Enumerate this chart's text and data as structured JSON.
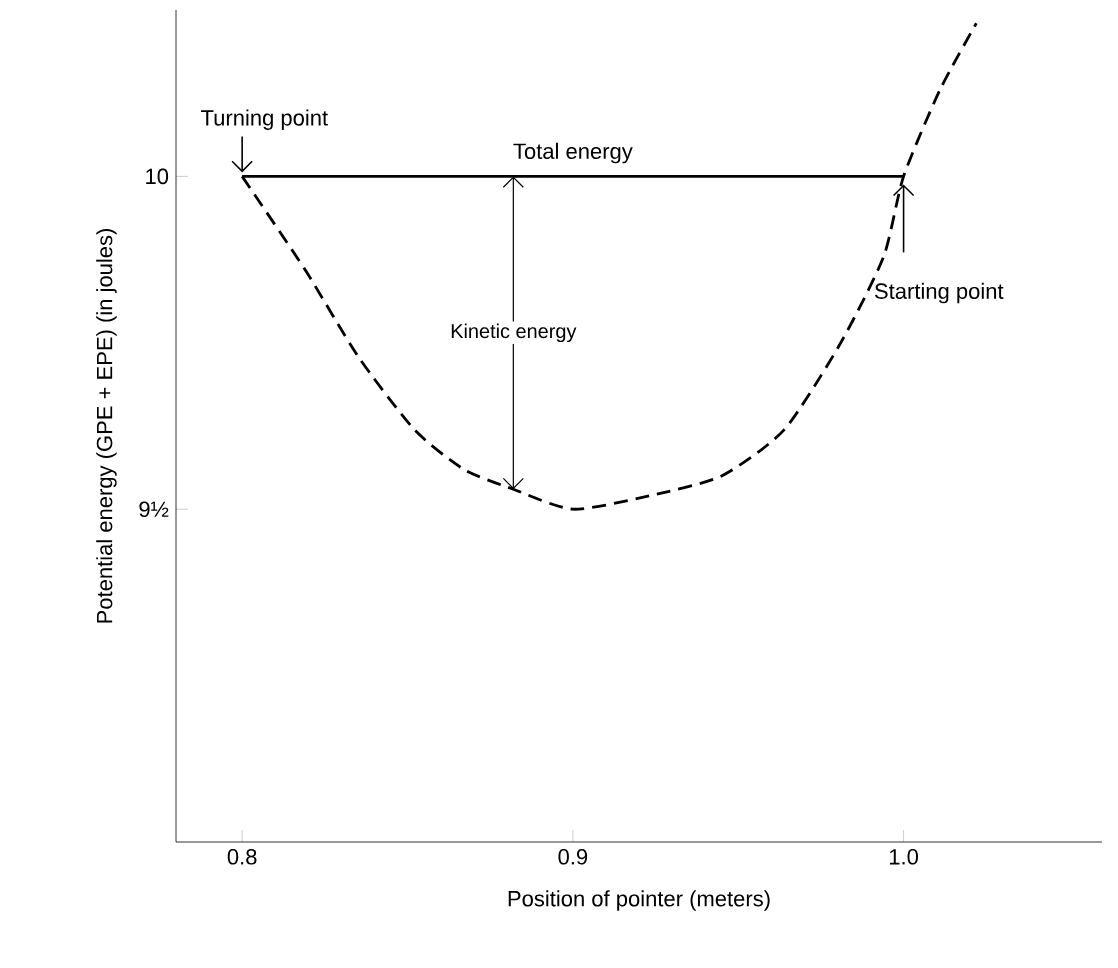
{
  "chart_data": {
    "type": "line",
    "xlabel": "Position of pointer (meters)",
    "ylabel": "Potential energy (GPE + EPE) (in joules)",
    "xlim": [
      0.78,
      1.06
    ],
    "ylim": [
      9.0,
      10.25
    ],
    "xticks": [
      {
        "value": 0.8,
        "label": "0.8"
      },
      {
        "value": 0.9,
        "label": "0.9"
      },
      {
        "value": 1.0,
        "label": "1.0"
      }
    ],
    "yticks": [
      {
        "value": 9.5,
        "label": "9½"
      },
      10
    ],
    "grid": false,
    "legend": false,
    "marker": "none",
    "series": [
      {
        "color": "#000000",
        "line_style": "dashed",
        "x": [
          0.8,
          0.819,
          0.835,
          0.852,
          0.867,
          0.882,
          0.9,
          0.923,
          0.945,
          0.964,
          0.981,
          0.994,
          1.0,
          1.011,
          1.022
        ],
        "values": [
          10,
          9.86,
          9.73,
          9.62,
          9.56,
          9.53,
          9.5,
          9.52,
          9.55,
          9.62,
          9.75,
          9.88,
          10,
          10.13,
          10.23
        ]
      },
      {
        "name": "Total energy",
        "color": "#000000",
        "line_style": "solid",
        "x": [
          0.8,
          1.0
        ],
        "values": [
          10,
          10
        ]
      }
    ],
    "annotations": [
      "Turning point",
      "Starting point",
      "Kinetic energy"
    ]
  }
}
